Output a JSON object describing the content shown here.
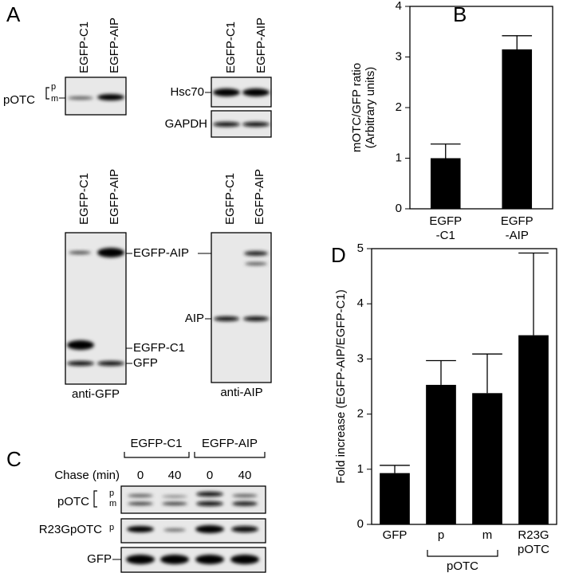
{
  "panel_labels": [
    "A",
    "B",
    "C",
    "D"
  ],
  "blot_otc": {
    "lanes": [
      "EGFP-C1",
      "EGFP-AIP"
    ],
    "label": "pOTC",
    "bands": [
      "p",
      "m"
    ]
  },
  "blot_hsc": {
    "lanes": [
      "EGFP-C1",
      "EGFP-AIP"
    ],
    "rows": [
      "Hsc70",
      "GAPDH"
    ]
  },
  "blot_gfp": {
    "lanes": [
      "EGFP-C1",
      "EGFP-AIP"
    ],
    "bands": [
      "EGFP-AIP",
      "EGFP-C1",
      "GFP"
    ],
    "antibody": "anti-GFP"
  },
  "blot_aip": {
    "lanes": [
      "EGFP-C1",
      "EGFP-AIP"
    ],
    "bands": [
      "AIP"
    ],
    "antibody": "anti-AIP"
  },
  "blot_chase": {
    "groups": [
      "EGFP-C1",
      "EGFP-AIP"
    ],
    "chase_label": "Chase (min)",
    "times": [
      0,
      40,
      0,
      40
    ],
    "rows": [
      {
        "label": "pOTC",
        "bands": [
          "p",
          "m"
        ]
      },
      {
        "label": "R23GpOTC",
        "bands": [
          "p"
        ]
      },
      {
        "label": "GFP"
      }
    ]
  },
  "chart_data": [
    {
      "type": "bar",
      "y_label": "mOTC/GFP ratio\n(Arbitrary units)",
      "categories": [
        "EGFP\n-C1",
        "EGFP\n-AIP"
      ],
      "values": [
        1.0,
        3.15
      ],
      "error": [
        0.28,
        0.27
      ],
      "color": "#000000",
      "ylim": [
        0,
        4
      ],
      "yticks": [
        0,
        1,
        2,
        3,
        4
      ]
    },
    {
      "type": "bar",
      "y_label": "Fold increase (EGFP-AIP/EGFP-C1)",
      "categories": [
        "GFP",
        "p",
        "m",
        "R23G\npOTC"
      ],
      "values": [
        0.93,
        2.53,
        2.38,
        3.43
      ],
      "error": [
        0.14,
        0.44,
        0.71,
        1.49
      ],
      "color": "#000000",
      "ylim": [
        0,
        5
      ],
      "yticks": [
        0,
        1,
        2,
        3,
        4,
        5
      ],
      "category_group": "pOTC"
    }
  ]
}
